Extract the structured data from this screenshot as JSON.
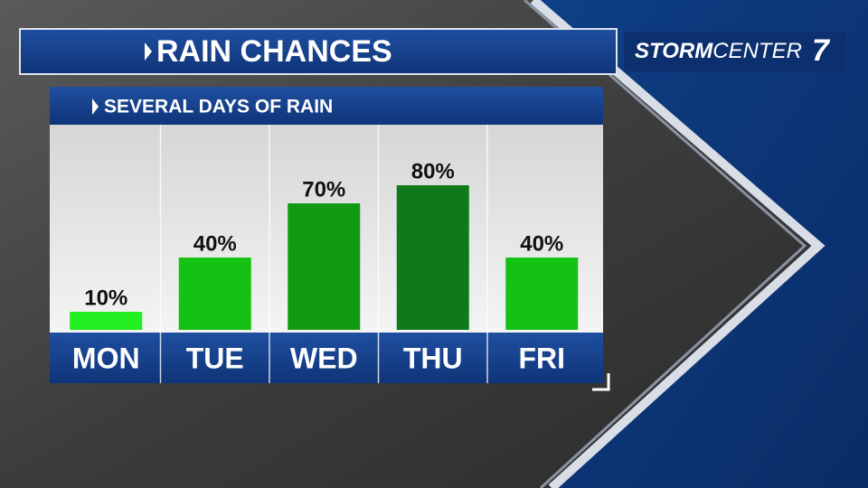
{
  "chart_data": {
    "type": "bar",
    "title": "RAIN CHANCES",
    "subtitle": "SEVERAL DAYS OF RAIN",
    "brand": {
      "part1": "STORM",
      "part2": "CENTER",
      "number": "7"
    },
    "categories": [
      "MON",
      "TUE",
      "WED",
      "THU",
      "FRI"
    ],
    "values": [
      10,
      40,
      70,
      80,
      40
    ],
    "value_labels": [
      "10%",
      "40%",
      "70%",
      "80%",
      "40%"
    ],
    "colors": [
      "#22ee22",
      "#14c214",
      "#129a12",
      "#0e7a1a",
      "#14c214"
    ]
  }
}
